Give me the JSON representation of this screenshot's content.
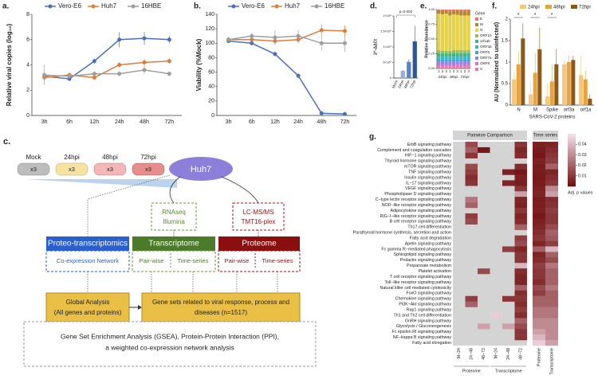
{
  "chart_data": [
    {
      "type": "line",
      "label": "a.",
      "ylabel": "Relative viral copies (log₁₀)",
      "categories": [
        "3h",
        "6h",
        "12h",
        "24h",
        "48h",
        "72h"
      ],
      "series": [
        {
          "name": "Vero-E6",
          "color": "#4a6fc1",
          "values": [
            3.1,
            2.9,
            4.3,
            6.0,
            6.1,
            6.0
          ],
          "errors": [
            0.3,
            0.2,
            0.2,
            0.6,
            0.5,
            0.3
          ]
        },
        {
          "name": "Huh7",
          "color": "#e07b39",
          "values": [
            3.0,
            3.2,
            3.0,
            4.0,
            4.2,
            4.3
          ],
          "errors": [
            0.3,
            0.2,
            0.2,
            0.2,
            0.3,
            0.2
          ]
        },
        {
          "name": "16HBE",
          "color": "#9e9e9e",
          "values": [
            3.2,
            3.1,
            3.3,
            3.3,
            3.6,
            3.3
          ],
          "errors": [
            0.8,
            0.2,
            0.2,
            0.2,
            0.3,
            0.2
          ]
        }
      ],
      "ylim": [
        0,
        8
      ],
      "yticks": [
        0,
        2,
        4,
        6,
        8
      ]
    },
    {
      "type": "line",
      "label": "b.",
      "ylabel": "Viability (%Mock)",
      "categories": [
        "3h",
        "6h",
        "12h",
        "24h",
        "48h",
        "72h"
      ],
      "series": [
        {
          "name": "Vero-E6",
          "color": "#4a6fc1",
          "values": [
            103,
            100,
            85,
            55,
            3,
            2
          ],
          "errors": [
            3,
            3,
            3,
            3,
            2,
            2
          ]
        },
        {
          "name": "Huh7",
          "color": "#e07b39",
          "values": [
            105,
            105,
            103,
            105,
            118,
            117
          ],
          "errors": [
            3,
            4,
            5,
            5,
            8,
            8
          ]
        },
        {
          "name": "16HBE",
          "color": "#9e9e9e",
          "values": [
            105,
            110,
            108,
            110,
            100,
            100
          ],
          "errors": [
            4,
            4,
            10,
            8,
            10,
            12
          ]
        }
      ],
      "ylim": [
        0,
        140
      ],
      "yticks": [
        0,
        20,
        40,
        60,
        80,
        100,
        120,
        140
      ]
    },
    {
      "type": "bar",
      "label": "d.",
      "ylabel": "2^-ΔΔCt",
      "annotation": "p=0.002",
      "categories": [
        "Mock",
        "24hpi",
        "48hpi",
        "72hpi"
      ],
      "values": [
        0,
        230000,
        520000,
        1180000
      ],
      "errors": [
        0,
        30000,
        80000,
        500000
      ],
      "colors": [
        "#c9d6ec",
        "#8fb0dc",
        "#5a82c4",
        "#2f5597"
      ],
      "ylim": [
        0,
        2000000
      ],
      "yticks": [
        0,
        {
          "value": 500000,
          "label": "5×10⁵"
        },
        {
          "value": 1000000,
          "label": "1×10⁶"
        },
        {
          "value": 1500000,
          "label": "1.5×10⁶"
        },
        {
          "value": 2000000,
          "label": "2×10⁶"
        }
      ]
    },
    {
      "type": "stacked_bar",
      "label": "e.",
      "ylabel": "Relative Abundance",
      "legend_title": "Gene",
      "categories": [
        "1",
        "2",
        "3",
        "1",
        "2",
        "3",
        "1",
        "2",
        "3"
      ],
      "groups": [
        "24hpi",
        "48hpi",
        "72hpi"
      ],
      "series": [
        {
          "name": "E",
          "color": "#e8756b",
          "values": [
            0.02,
            0.02,
            0.02,
            0.03,
            0.02,
            0.02,
            0.02,
            0.03,
            0.02
          ]
        },
        {
          "name": "M",
          "color": "#b8862c",
          "values": [
            0.05,
            0.06,
            0.05,
            0.07,
            0.06,
            0.07,
            0.08,
            0.07,
            0.08
          ]
        },
        {
          "name": "N",
          "color": "#e3d24a",
          "values": [
            0.62,
            0.62,
            0.63,
            0.6,
            0.61,
            0.6,
            0.59,
            0.59,
            0.59
          ]
        },
        {
          "name": "ORF10",
          "color": "#8cc063",
          "values": [
            0.05,
            0.05,
            0.05,
            0.05,
            0.05,
            0.05,
            0.05,
            0.05,
            0.05
          ]
        },
        {
          "name": "orf1ab",
          "color": "#3fb58a",
          "values": [
            0.06,
            0.05,
            0.05,
            0.05,
            0.06,
            0.05,
            0.05,
            0.06,
            0.05
          ]
        },
        {
          "name": "ORF3a",
          "color": "#3cb8c4",
          "values": [
            0.05,
            0.05,
            0.05,
            0.05,
            0.05,
            0.05,
            0.05,
            0.05,
            0.05
          ]
        },
        {
          "name": "ORF6",
          "color": "#4a9de0",
          "values": [
            0.04,
            0.04,
            0.04,
            0.04,
            0.04,
            0.04,
            0.04,
            0.04,
            0.04
          ]
        },
        {
          "name": "ORF7a",
          "color": "#9a84e0",
          "values": [
            0.05,
            0.05,
            0.05,
            0.05,
            0.05,
            0.05,
            0.05,
            0.05,
            0.05
          ]
        },
        {
          "name": "ORF8",
          "color": "#e06fc9",
          "values": [
            0.03,
            0.03,
            0.03,
            0.03,
            0.03,
            0.03,
            0.03,
            0.03,
            0.03
          ]
        },
        {
          "name": "S",
          "color": "#f07a9a",
          "values": [
            0.03,
            0.03,
            0.03,
            0.03,
            0.03,
            0.04,
            0.04,
            0.03,
            0.04
          ]
        }
      ],
      "ylim": [
        0,
        1
      ],
      "yticks": [
        {
          "value": 0,
          "label": "0.00"
        },
        0.25,
        {
          "value": 0.5,
          "label": "0.50"
        },
        0.75,
        {
          "value": 1,
          "label": "1.00"
        }
      ]
    },
    {
      "type": "grouped_bar",
      "label": "f.",
      "ylabel": "AU (Normalized to uninfected)",
      "xlabel": "SARS-CoV-2 proteins",
      "categories": [
        "N",
        "M",
        "Spike",
        "orf3a",
        "orf1a"
      ],
      "annotations": [
        "*",
        "*",
        "*"
      ],
      "series": [
        {
          "name": "24hpi",
          "color": "#f5c77e",
          "values": [
            0.6,
            0.25,
            0.2,
            0.95,
            0.7
          ],
          "errors": [
            0.2,
            0.3,
            0.3,
            0.1,
            0.45
          ]
        },
        {
          "name": "48hpi",
          "color": "#e8a33d",
          "values": [
            0.95,
            0.75,
            0.55,
            1.0,
            0.6
          ],
          "errors": [
            0.3,
            0.45,
            0.4,
            0.15,
            0.2
          ]
        },
        {
          "name": "72hpi",
          "color": "#8b5a1b",
          "values": [
            1.55,
            1.3,
            0.95,
            1.05,
            0.15
          ],
          "errors": [
            0.35,
            0.5,
            0.35,
            0.1,
            0.1
          ]
        }
      ],
      "ylim": [
        0,
        2
      ],
      "yticks": [
        0,
        0.5,
        1,
        1.5,
        2
      ]
    },
    {
      "type": "heatmap",
      "label": "g.",
      "headers": [
        "Pairwise Comparison",
        "Time series"
      ],
      "groups": [
        "Proteome",
        "Transcriptome"
      ],
      "columns": [
        "M−24",
        "24−48",
        "48−72",
        "M−24",
        "24−48",
        "48−72",
        "Proteome",
        "Transcriptome"
      ],
      "rows": [
        "ErbB signaling pathway",
        "Complement and coagulation cascades",
        "HIF−1 signaling pathway",
        "Thyroid hormone signaling pathway",
        "mTOR signaling pathway",
        "TNF signaling pathway",
        "Insulin signaling pathway",
        "IL−17 signaling pathway",
        "VEGF signaling pathway",
        "Phospholipase D signaling pathway",
        "C−type lectin receptor signaling pathway",
        "NOD−like receptor signaling pathway",
        "Adipocytokine signaling pathway",
        "RIG−I−like receptor signaling pathway",
        "B cell receptor signaling pathway",
        "Th17 cell differentiation",
        "Parathyroid hormone synthesis, secretion and action",
        "Fatty acid degradation",
        "Apelin signaling pathway",
        "Fc gamma R−mediated phagocytosis",
        "Sphingolipid signaling pathway",
        "Prolactin signaling pathway",
        "Propanoate metabolism",
        "Platelet activation",
        "T cell receptor signaling pathway",
        "Toll−like receptor signaling pathway",
        "Natural killer cell mediated cytotoxicity",
        "FoxO signaling pathway",
        "Chemokine signaling pathway",
        "PI3K−Akt signaling pathway",
        "Rap1 signaling pathway",
        "Th1 and Th2 cell differentiation",
        "GnRH signaling pathway",
        "Glycolysis / Gluconeogenesis",
        "Fc epsilon RI signaling pathway",
        "NF−kappa B signaling pathway",
        "Fatty acid elongation"
      ],
      "values": [
        [
          null,
          0.015,
          null,
          null,
          null,
          0.01,
          0.005,
          0.006
        ],
        [
          null,
          0.02,
          0.003,
          null,
          null,
          0.006,
          0.004,
          0.008
        ],
        [
          null,
          0.01,
          null,
          null,
          null,
          0.008,
          0.003,
          0.01
        ],
        [
          null,
          null,
          null,
          null,
          null,
          null,
          0.005,
          0.012
        ],
        [
          null,
          0.015,
          null,
          null,
          null,
          0.008,
          0.004,
          0.02
        ],
        [
          null,
          0.012,
          null,
          null,
          0.005,
          0.003,
          0.004,
          0.006
        ],
        [
          null,
          0.008,
          null,
          null,
          null,
          0.005,
          0.003,
          0.008
        ],
        [
          null,
          0.01,
          null,
          null,
          0.006,
          0.004,
          0.004,
          0.01
        ],
        [
          null,
          null,
          null,
          null,
          null,
          0.01,
          0.005,
          0.03
        ],
        [
          null,
          null,
          null,
          null,
          null,
          0.035,
          0.006,
          0.035
        ],
        [
          null,
          0.025,
          null,
          null,
          null,
          0.006,
          0.004,
          0.008
        ],
        [
          null,
          0.02,
          null,
          null,
          null,
          0.005,
          0.004,
          0.009
        ],
        [
          null,
          null,
          null,
          null,
          null,
          0.01,
          0.005,
          0.012
        ],
        [
          null,
          0.012,
          null,
          null,
          null,
          0.006,
          0.003,
          0.01
        ],
        [
          null,
          0.015,
          null,
          null,
          null,
          0.008,
          0.005,
          0.01
        ],
        [
          null,
          null,
          null,
          null,
          null,
          0.02,
          0.006,
          0.015
        ],
        [
          null,
          null,
          null,
          null,
          null,
          null,
          0.008,
          0.02
        ],
        [
          null,
          null,
          null,
          null,
          null,
          0.012,
          0.01,
          0.018
        ],
        [
          null,
          null,
          null,
          null,
          null,
          0.015,
          0.006,
          0.012
        ],
        [
          null,
          null,
          null,
          null,
          0.012,
          0.006,
          0.02,
          0.04
        ],
        [
          null,
          null,
          null,
          null,
          null,
          0.01,
          0.006,
          0.02
        ],
        [
          null,
          null,
          null,
          null,
          null,
          0.01,
          0.008,
          0.015
        ],
        [
          null,
          null,
          null,
          null,
          null,
          0.04,
          0.012,
          0.025
        ],
        [
          null,
          null,
          0.015,
          null,
          null,
          0.008,
          0.01,
          0.02
        ],
        [
          null,
          null,
          null,
          null,
          null,
          0.006,
          0.01,
          0.02
        ],
        [
          null,
          null,
          null,
          null,
          null,
          0.006,
          0.008,
          0.02
        ],
        [
          null,
          null,
          null,
          null,
          null,
          0.02,
          0.015,
          0.025
        ],
        [
          null,
          null,
          null,
          null,
          null,
          0.008,
          0.012,
          0.02
        ],
        [
          null,
          0.012,
          null,
          null,
          0.01,
          0.01,
          0.02,
          0.02
        ],
        [
          null,
          0.02,
          null,
          null,
          null,
          0.008,
          0.02,
          0.02
        ],
        [
          null,
          null,
          null,
          null,
          null,
          0.012,
          0.025,
          0.025
        ],
        [
          null,
          null,
          null,
          0.045,
          null,
          0.008,
          0.025,
          0.025
        ],
        [
          null,
          null,
          null,
          null,
          null,
          0.02,
          0.03,
          0.03
        ],
        [
          null,
          null,
          0.035,
          null,
          0.035,
          0.015,
          0.03,
          0.03
        ],
        [
          null,
          null,
          null,
          null,
          null,
          0.01,
          0.035,
          0.03
        ],
        [
          null,
          null,
          null,
          null,
          null,
          0.01,
          0.04,
          0.03
        ],
        [
          null,
          null,
          null,
          null,
          null,
          null,
          0.045,
          0.035
        ]
      ],
      "colorbar_title": "Adj. p values",
      "clim": [
        0,
        0.05
      ],
      "cticks": [
        0.01,
        0.02,
        0.03,
        0.04
      ],
      "colormap": [
        "#6e0b0b",
        "#f5e1ee"
      ],
      "na_color": "#d4d4d4"
    }
  ],
  "diagram": {
    "label": "c.",
    "plates": [
      {
        "label": "Mock",
        "count": "x3"
      },
      {
        "label": "24hpi",
        "count": "x3"
      },
      {
        "label": "48hpi",
        "count": "x3"
      },
      {
        "label": "72hpi",
        "count": "x3"
      }
    ],
    "cell_line": "Huh7",
    "rnaseq": [
      "RNAseq",
      "Illumina"
    ],
    "ms": [
      "LC-MS/MS",
      "TMT16-plex"
    ],
    "analyses": [
      {
        "title": "Proteo-transcriptomics",
        "items": [
          "Co-expression Network"
        ]
      },
      {
        "title": "Transcriptome",
        "items": [
          "Pair-wise",
          "Time-series"
        ]
      },
      {
        "title": "Proteome",
        "items": [
          "Pair-wise",
          "Time-series"
        ]
      }
    ],
    "global": [
      "Global Analysis",
      "(All genes and proteins)"
    ],
    "gene_sets": [
      "Gene sets related to viral response, process and",
      "diseases (n=1517)"
    ],
    "methods": [
      "Gene Set Enrichment Analysis (GSEA), Protein-Protein Interaction (PPI),",
      "a weighted co-expression network analysis"
    ]
  }
}
